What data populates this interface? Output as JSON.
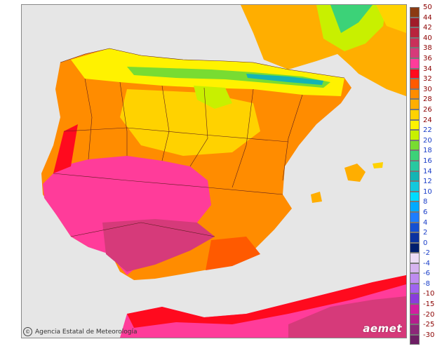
{
  "credit": {
    "icon": "cc-icon",
    "text": "Agencia Estatal de Meteorología"
  },
  "brand": {
    "icon": "aemet-logo-icon",
    "text": "aemet"
  },
  "legend": {
    "warm": [
      {
        "value": "50",
        "color": "#8b3a12",
        "text_color": "#8b0000"
      },
      {
        "value": "44",
        "color": "#a01c2a",
        "text_color": "#8b0000"
      },
      {
        "value": "42",
        "color": "#b8243d",
        "text_color": "#8b0000"
      },
      {
        "value": "40",
        "color": "#c9305a",
        "text_color": "#8b0000"
      },
      {
        "value": "38",
        "color": "#d63a7a",
        "text_color": "#8b0000"
      },
      {
        "value": "36",
        "color": "#ff3c9a",
        "text_color": "#8b0000"
      },
      {
        "value": "34",
        "color": "#ff0a1e",
        "text_color": "#8b0000"
      },
      {
        "value": "32",
        "color": "#ff5a00",
        "text_color": "#8b0000"
      },
      {
        "value": "30",
        "color": "#ff8c00",
        "text_color": "#8b0000"
      },
      {
        "value": "28",
        "color": "#ffae00",
        "text_color": "#8b0000"
      },
      {
        "value": "26",
        "color": "#ffd200",
        "text_color": "#8b0000"
      },
      {
        "value": "24",
        "color": "#fff200",
        "text_color": "#8b0000"
      },
      {
        "value": "22",
        "color": "#c8f000",
        "text_color": "#1a3ec8"
      },
      {
        "value": "20",
        "color": "#78dc32",
        "text_color": "#1a3ec8"
      },
      {
        "value": "18",
        "color": "#3cd278",
        "text_color": "#1a3ec8"
      },
      {
        "value": "16",
        "color": "#28c8a0",
        "text_color": "#1a3ec8"
      },
      {
        "value": "14",
        "color": "#14b4b4",
        "text_color": "#1a3ec8"
      },
      {
        "value": "12",
        "color": "#14c8dc",
        "text_color": "#1a3ec8"
      },
      {
        "value": "10",
        "color": "#00dcff",
        "text_color": "#1a3ec8"
      },
      {
        "value": "8",
        "color": "#00aaff",
        "text_color": "#1a3ec8"
      },
      {
        "value": "6",
        "color": "#1e7dff",
        "text_color": "#1a3ec8"
      },
      {
        "value": "4",
        "color": "#1450d2",
        "text_color": "#1a3ec8"
      },
      {
        "value": "2",
        "color": "#0a32a0",
        "text_color": "#1a3ec8"
      },
      {
        "value": "0",
        "color": "#001e6e",
        "text_color": "#1a3ec8"
      }
    ],
    "cold": [
      {
        "value": "-2",
        "color": "#ecdcf5",
        "text_color": "#1a3ec8"
      },
      {
        "value": "-4",
        "color": "#d6b4f0",
        "text_color": "#1a3ec8"
      },
      {
        "value": "-6",
        "color": "#be8cf0",
        "text_color": "#1a3ec8"
      },
      {
        "value": "-8",
        "color": "#a064f0",
        "text_color": "#1a3ec8"
      },
      {
        "value": "-10",
        "color": "#8a3cdc",
        "text_color": "#8b0000"
      },
      {
        "value": "-15",
        "color": "#d21ea0",
        "text_color": "#8b0000"
      },
      {
        "value": "-20",
        "color": "#b41e8c",
        "text_color": "#8b0000"
      },
      {
        "value": "-25",
        "color": "#8c2878",
        "text_color": "#8b0000"
      },
      {
        "value": "-30",
        "color": "#6e1e64",
        "text_color": "#8b0000"
      }
    ]
  }
}
